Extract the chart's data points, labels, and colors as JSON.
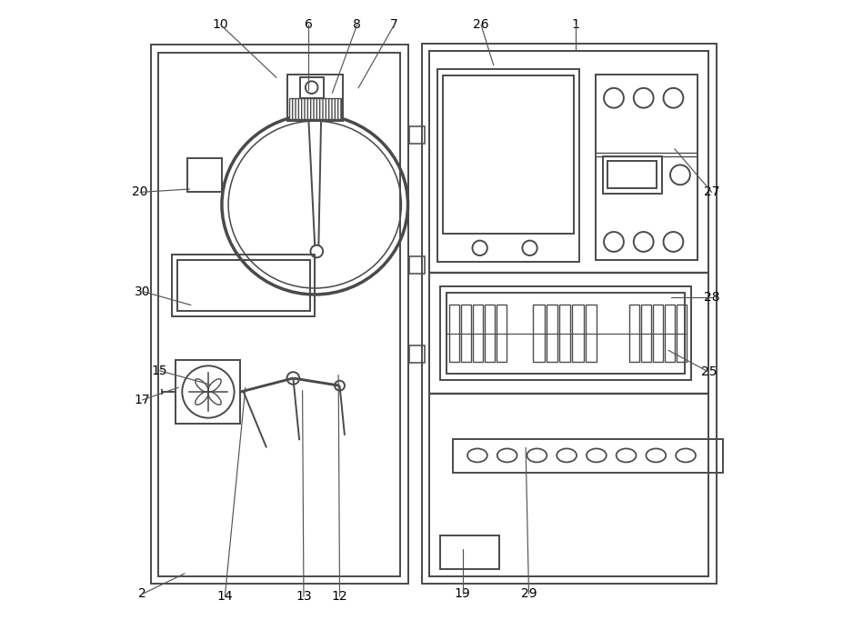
{
  "bg_color": "#ffffff",
  "line_color": "#4a4a4a",
  "line_width": 1.4,
  "fig_width": 9.38,
  "fig_height": 6.82,
  "label_positions": {
    "1": [
      0.74,
      0.96,
      0.74,
      0.92
    ],
    "2": [
      0.042,
      0.042,
      0.11,
      0.075
    ],
    "6": [
      0.31,
      0.96,
      0.31,
      0.855
    ],
    "7": [
      0.448,
      0.96,
      0.39,
      0.858
    ],
    "8": [
      0.388,
      0.96,
      0.348,
      0.85
    ],
    "10": [
      0.168,
      0.96,
      0.258,
      0.875
    ],
    "12": [
      0.36,
      0.038,
      0.358,
      0.395
    ],
    "13": [
      0.302,
      0.038,
      0.3,
      0.37
    ],
    "14": [
      0.175,
      0.038,
      0.208,
      0.375
    ],
    "15": [
      0.07,
      0.402,
      0.15,
      0.38
    ],
    "17": [
      0.042,
      0.355,
      0.1,
      0.375
    ],
    "19": [
      0.558,
      0.042,
      0.558,
      0.115
    ],
    "20": [
      0.038,
      0.69,
      0.118,
      0.695
    ],
    "25": [
      0.955,
      0.4,
      0.89,
      0.435
    ],
    "26": [
      0.588,
      0.96,
      0.608,
      0.895
    ],
    "27": [
      0.96,
      0.69,
      0.9,
      0.76
    ],
    "28": [
      0.96,
      0.52,
      0.895,
      0.52
    ],
    "29": [
      0.665,
      0.042,
      0.66,
      0.278
    ],
    "30": [
      0.042,
      0.53,
      0.12,
      0.508
    ]
  }
}
